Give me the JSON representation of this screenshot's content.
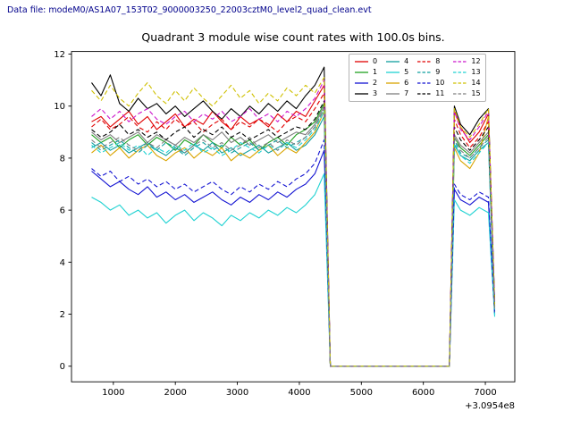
{
  "figure": {
    "header_label": "Data file: modeM0/AS1A07_153T02_9000003250_22003cztM0_level2_quad_clean.evt",
    "header_color": "#00008b",
    "background": "#ffffff"
  },
  "chart_data": {
    "type": "line",
    "title": "Quadrant 3 module wise count rates with 100.0s bins.",
    "xlabel": "",
    "ylabel": "",
    "x_offset_label": "+3.0954e8",
    "xlim": [
      325,
      7475
    ],
    "ylim": [
      -0.6,
      12.1
    ],
    "xticks": [
      1000,
      2000,
      3000,
      4000,
      5000,
      6000,
      7000
    ],
    "yticks": [
      0,
      2,
      4,
      6,
      8,
      10,
      12
    ],
    "grid": false,
    "legend_position": "upper right",
    "legend_columns": 4,
    "x": [
      650,
      800,
      950,
      1100,
      1250,
      1400,
      1550,
      1700,
      1850,
      2000,
      2150,
      2300,
      2450,
      2600,
      2750,
      2900,
      3050,
      3200,
      3350,
      3500,
      3650,
      3800,
      3950,
      4100,
      4250,
      4400,
      4500,
      4600,
      4800,
      5200,
      5600,
      6000,
      6300,
      6420,
      6500,
      6600,
      6750,
      6900,
      7050,
      7150
    ],
    "series": [
      {
        "name": "0",
        "color": "#e00000",
        "dash": false,
        "values": [
          9.4,
          9.6,
          9.2,
          9.5,
          9.8,
          9.3,
          9.6,
          9.1,
          9.4,
          9.7,
          9.2,
          9.5,
          9.3,
          9.8,
          9.4,
          9.1,
          9.6,
          9.3,
          9.5,
          9.2,
          9.7,
          9.4,
          9.8,
          9.6,
          10.2,
          10.8,
          0,
          0,
          0,
          0,
          0,
          0,
          0,
          0,
          9.8,
          9.2,
          8.6,
          9.0,
          9.7,
          2.3
        ]
      },
      {
        "name": "1",
        "color": "#1fa01f",
        "dash": false,
        "values": [
          8.9,
          8.6,
          8.8,
          8.4,
          8.7,
          8.9,
          8.5,
          8.8,
          8.6,
          8.3,
          8.7,
          8.5,
          8.9,
          8.6,
          8.4,
          8.8,
          8.5,
          8.7,
          8.3,
          8.6,
          8.8,
          8.5,
          8.9,
          9.1,
          9.4,
          10.1,
          0,
          0,
          0,
          0,
          0,
          0,
          0,
          0,
          8.8,
          8.4,
          8.1,
          8.5,
          8.9,
          2.1
        ]
      },
      {
        "name": "2",
        "color": "#1414d2",
        "dash": false,
        "values": [
          7.5,
          7.2,
          6.9,
          7.1,
          6.8,
          6.6,
          6.9,
          6.5,
          6.7,
          6.4,
          6.6,
          6.3,
          6.5,
          6.7,
          6.4,
          6.2,
          6.5,
          6.3,
          6.6,
          6.4,
          6.7,
          6.5,
          6.8,
          7.0,
          7.4,
          8.3,
          0,
          0,
          0,
          0,
          0,
          0,
          0,
          0,
          6.8,
          6.4,
          6.2,
          6.5,
          6.3,
          2.0
        ]
      },
      {
        "name": "3",
        "color": "#000000",
        "dash": false,
        "values": [
          10.9,
          10.4,
          11.2,
          10.1,
          9.8,
          10.3,
          9.9,
          10.1,
          9.7,
          10.0,
          9.6,
          9.9,
          10.2,
          9.8,
          9.5,
          9.9,
          9.6,
          10.0,
          9.7,
          10.1,
          9.8,
          10.2,
          9.9,
          10.4,
          10.8,
          11.5,
          0,
          0,
          0,
          0,
          0,
          0,
          0,
          0,
          10.0,
          9.3,
          8.9,
          9.5,
          9.9,
          2.4
        ]
      },
      {
        "name": "4",
        "color": "#0f9f9f",
        "dash": false,
        "values": [
          8.4,
          8.6,
          8.3,
          8.5,
          8.2,
          8.4,
          8.6,
          8.3,
          8.1,
          8.4,
          8.2,
          8.5,
          8.3,
          8.6,
          8.2,
          8.4,
          8.1,
          8.3,
          8.5,
          8.2,
          8.4,
          8.6,
          8.3,
          8.5,
          8.9,
          9.6,
          0,
          0,
          0,
          0,
          0,
          0,
          0,
          0,
          8.5,
          8.1,
          7.9,
          8.3,
          8.6,
          2.0
        ]
      },
      {
        "name": "5",
        "color": "#1fd2d2",
        "dash": false,
        "values": [
          6.5,
          6.3,
          6.0,
          6.2,
          5.8,
          6.0,
          5.7,
          5.9,
          5.5,
          5.8,
          6.0,
          5.6,
          5.9,
          5.7,
          5.4,
          5.8,
          5.6,
          5.9,
          5.7,
          6.0,
          5.8,
          6.1,
          5.9,
          6.2,
          6.6,
          7.4,
          0,
          0,
          0,
          0,
          0,
          0,
          0,
          0,
          6.4,
          6.0,
          5.8,
          6.1,
          5.9,
          1.9
        ]
      },
      {
        "name": "6",
        "color": "#d9a400",
        "dash": false,
        "values": [
          8.2,
          8.5,
          8.1,
          8.4,
          8.0,
          8.3,
          8.5,
          8.1,
          7.9,
          8.2,
          8.4,
          8.0,
          8.3,
          8.1,
          8.4,
          7.9,
          8.2,
          8.0,
          8.3,
          8.5,
          8.1,
          8.4,
          8.2,
          8.6,
          9.0,
          9.8,
          0,
          0,
          0,
          0,
          0,
          0,
          0,
          0,
          8.4,
          7.9,
          7.6,
          8.2,
          9.6,
          2.2
        ]
      },
      {
        "name": "7",
        "color": "#7f7f7f",
        "dash": false,
        "values": [
          9.0,
          8.7,
          8.9,
          8.6,
          8.8,
          9.0,
          8.6,
          8.9,
          8.7,
          8.5,
          8.8,
          8.6,
          8.9,
          8.7,
          9.0,
          8.6,
          8.8,
          8.5,
          8.7,
          8.9,
          8.6,
          8.8,
          9.0,
          8.9,
          9.3,
          10.0,
          0,
          0,
          0,
          0,
          0,
          0,
          0,
          0,
          8.9,
          8.5,
          8.2,
          8.6,
          9.0,
          2.2
        ]
      },
      {
        "name": "8",
        "color": "#e00000",
        "dash": true,
        "values": [
          9.2,
          9.5,
          9.1,
          9.3,
          9.6,
          9.2,
          9.0,
          9.4,
          9.1,
          9.5,
          9.2,
          9.4,
          9.0,
          9.3,
          9.5,
          9.1,
          9.4,
          9.2,
          9.5,
          9.3,
          9.0,
          9.4,
          9.6,
          9.4,
          9.9,
          10.5,
          0,
          0,
          0,
          0,
          0,
          0,
          0,
          0,
          9.5,
          8.9,
          8.4,
          8.8,
          9.4,
          2.2
        ]
      },
      {
        "name": "9",
        "color": "#0f9f9f",
        "dash": true,
        "values": [
          8.6,
          8.3,
          8.5,
          8.7,
          8.4,
          8.2,
          8.5,
          8.3,
          8.6,
          8.4,
          8.1,
          8.4,
          8.6,
          8.3,
          8.5,
          8.2,
          8.4,
          8.6,
          8.3,
          8.5,
          8.7,
          8.4,
          8.6,
          8.8,
          9.2,
          9.9,
          0,
          0,
          0,
          0,
          0,
          0,
          0,
          0,
          8.7,
          8.2,
          8.0,
          8.4,
          8.7,
          2.1
        ]
      },
      {
        "name": "10",
        "color": "#1414d2",
        "dash": true,
        "values": [
          7.6,
          7.3,
          7.5,
          7.1,
          7.3,
          7.0,
          7.2,
          6.9,
          7.1,
          6.8,
          7.0,
          6.7,
          6.9,
          7.1,
          6.8,
          6.6,
          6.9,
          6.7,
          7.0,
          6.8,
          7.1,
          6.9,
          7.2,
          7.4,
          7.8,
          8.7,
          0,
          0,
          0,
          0,
          0,
          0,
          0,
          0,
          7.0,
          6.6,
          6.4,
          6.7,
          6.5,
          2.0
        ]
      },
      {
        "name": "11",
        "color": "#000000",
        "dash": true,
        "values": [
          9.1,
          8.8,
          9.0,
          9.3,
          8.9,
          9.1,
          8.8,
          9.0,
          8.7,
          9.0,
          9.2,
          8.8,
          9.1,
          8.9,
          9.2,
          8.8,
          9.0,
          8.7,
          8.9,
          9.1,
          8.8,
          9.0,
          9.2,
          9.1,
          9.5,
          10.2,
          0,
          0,
          0,
          0,
          0,
          0,
          0,
          0,
          9.2,
          8.7,
          8.3,
          8.7,
          9.2,
          2.3
        ]
      },
      {
        "name": "12",
        "color": "#cc14cc",
        "dash": true,
        "values": [
          9.6,
          9.9,
          9.5,
          9.8,
          9.4,
          9.7,
          9.9,
          9.5,
          9.3,
          9.6,
          9.8,
          9.4,
          9.7,
          9.5,
          9.8,
          9.4,
          9.6,
          9.9,
          9.5,
          9.7,
          9.4,
          9.8,
          9.6,
          9.9,
          10.3,
          11.0,
          0,
          0,
          0,
          0,
          0,
          0,
          0,
          0,
          9.8,
          9.1,
          8.7,
          9.2,
          9.8,
          2.4
        ]
      },
      {
        "name": "13",
        "color": "#1fd2d2",
        "dash": true,
        "values": [
          8.5,
          8.2,
          8.4,
          8.6,
          8.3,
          8.5,
          8.1,
          8.4,
          8.2,
          8.5,
          8.3,
          8.6,
          8.2,
          8.4,
          8.1,
          8.3,
          8.6,
          8.4,
          8.2,
          8.5,
          8.3,
          8.6,
          8.4,
          8.7,
          9.1,
          9.8,
          0,
          0,
          0,
          0,
          0,
          0,
          0,
          0,
          8.6,
          8.1,
          7.8,
          8.2,
          8.6,
          2.0
        ]
      },
      {
        "name": "14",
        "color": "#cfc000",
        "dash": true,
        "values": [
          10.6,
          10.2,
          10.8,
          10.3,
          10.0,
          10.5,
          10.9,
          10.4,
          10.1,
          10.6,
          10.2,
          10.7,
          10.3,
          10.0,
          10.4,
          10.8,
          10.3,
          10.6,
          10.1,
          10.5,
          10.2,
          10.7,
          10.4,
          10.8,
          10.5,
          11.1,
          0,
          0,
          0,
          0,
          0,
          0,
          0,
          0,
          9.9,
          9.2,
          8.8,
          9.3,
          9.9,
          2.3
        ]
      },
      {
        "name": "15",
        "color": "#7f7f7f",
        "dash": true,
        "values": [
          8.7,
          8.4,
          8.6,
          8.8,
          8.5,
          8.3,
          8.6,
          8.4,
          8.7,
          8.5,
          8.2,
          8.5,
          8.7,
          8.4,
          8.6,
          8.3,
          8.5,
          8.8,
          8.4,
          8.6,
          8.3,
          8.7,
          8.5,
          8.8,
          9.2,
          9.9,
          0,
          0,
          0,
          0,
          0,
          0,
          0,
          0,
          8.8,
          8.3,
          8.0,
          8.4,
          8.8,
          2.1
        ]
      }
    ]
  }
}
